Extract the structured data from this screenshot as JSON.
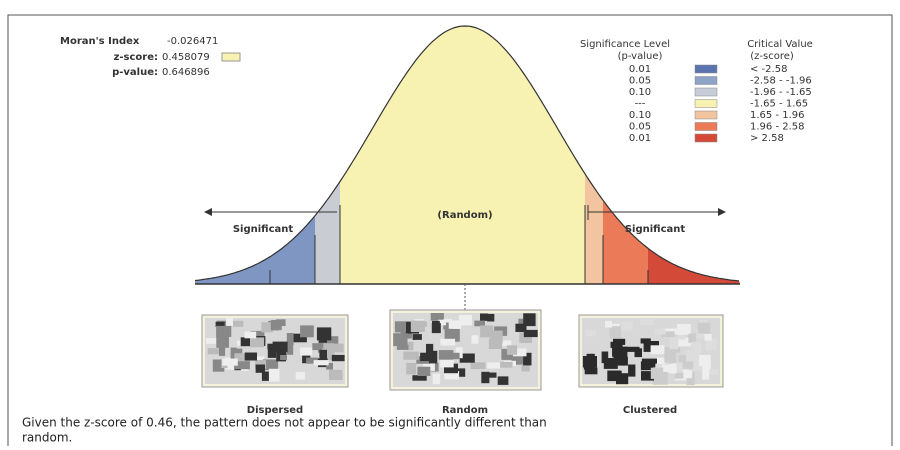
{
  "stats": {
    "index_label": "Moran's Index",
    "index_value": "-0.026471",
    "z_label": "z-score:",
    "z_value": "0.458079",
    "p_label": "p-value:",
    "p_value": "0.646896"
  },
  "legend": {
    "p_header": "Significance Level",
    "p_sub": "(p-value)",
    "z_header": "Critical Value",
    "z_sub": "(z-score)",
    "rows": [
      {
        "p": "0.01",
        "z": "< -2.58",
        "color": "#5a74b0"
      },
      {
        "p": "0.05",
        "z": "-2.58 - -1.96",
        "color": "#8fa3c8"
      },
      {
        "p": "0.10",
        "z": "-1.96 - -1.65",
        "color": "#c6ccd8"
      },
      {
        "p": "---",
        "z": "-1.65 - 1.65",
        "color": "#f7f2b2"
      },
      {
        "p": "0.10",
        "z": "1.65 - 1.96",
        "color": "#f2c4a0"
      },
      {
        "p": "0.05",
        "z": "1.96 - 2.58",
        "color": "#ea7a58"
      },
      {
        "p": "0.01",
        "z": "> 2.58",
        "color": "#d44a38"
      }
    ]
  },
  "curve": {
    "left_label": "Significant",
    "center_label": "(Random)",
    "right_label": "Significant"
  },
  "maps": [
    "Dispersed",
    "Random",
    "Clustered"
  ],
  "footer": {
    "line1": "Given the z-score of 0.46, the pattern does not appear to be significantly different than",
    "line2": "random."
  }
}
